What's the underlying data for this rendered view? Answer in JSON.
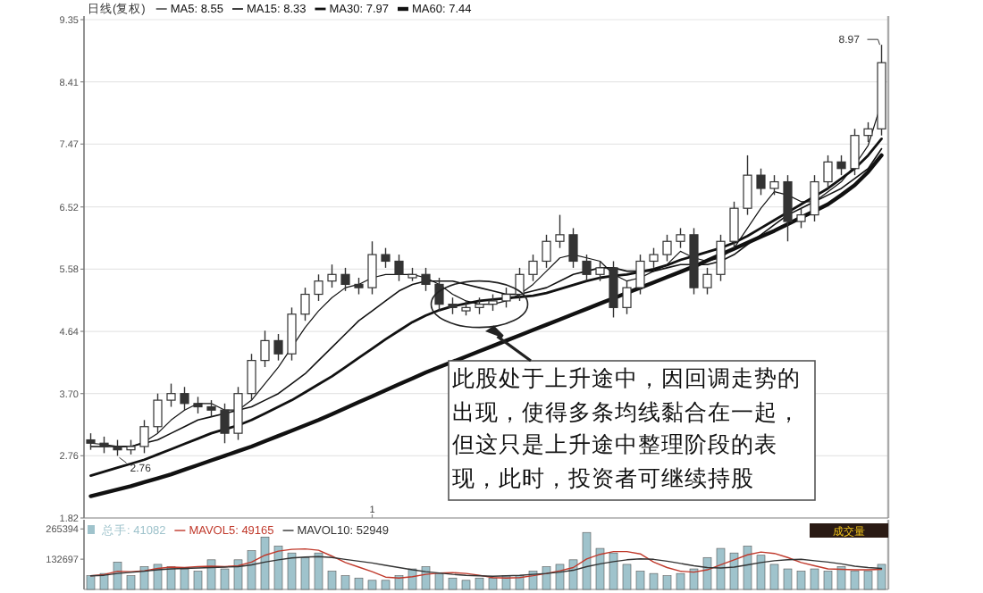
{
  "chart_data": [
    {
      "type": "candlestick",
      "title": "日线(复权)",
      "categories": [
        null,
        null,
        null,
        null,
        null,
        null,
        null,
        null,
        null,
        null,
        null,
        null,
        null,
        null,
        null,
        null,
        null,
        null,
        null,
        null,
        null,
        "1",
        null,
        null,
        null,
        null,
        null,
        null,
        null,
        null,
        null,
        null,
        null,
        null,
        null,
        null,
        null,
        null,
        null,
        null,
        null,
        null,
        null,
        null,
        null,
        null,
        null,
        null,
        null,
        null,
        null,
        null,
        null,
        null,
        null,
        null,
        null,
        null,
        null,
        null
      ],
      "ohlc": [
        [
          3.0,
          3.1,
          2.85,
          2.95
        ],
        [
          2.95,
          3.05,
          2.8,
          2.9
        ],
        [
          2.9,
          3.0,
          2.76,
          2.85
        ],
        [
          2.85,
          3.0,
          2.78,
          2.9
        ],
        [
          2.9,
          3.3,
          2.8,
          3.2
        ],
        [
          3.2,
          3.7,
          3.1,
          3.6
        ],
        [
          3.6,
          3.85,
          3.5,
          3.7
        ],
        [
          3.7,
          3.8,
          3.45,
          3.55
        ],
        [
          3.55,
          3.65,
          3.4,
          3.5
        ],
        [
          3.5,
          3.6,
          3.35,
          3.45
        ],
        [
          3.45,
          3.55,
          2.95,
          3.1
        ],
        [
          3.1,
          3.8,
          3.0,
          3.7
        ],
        [
          3.7,
          4.3,
          3.6,
          4.2
        ],
        [
          4.2,
          4.65,
          4.1,
          4.5
        ],
        [
          4.5,
          4.6,
          4.2,
          4.3
        ],
        [
          4.3,
          5.0,
          4.2,
          4.9
        ],
        [
          4.9,
          5.3,
          4.8,
          5.2
        ],
        [
          5.2,
          5.5,
          5.1,
          5.4
        ],
        [
          5.4,
          5.65,
          5.3,
          5.5
        ],
        [
          5.5,
          5.6,
          5.25,
          5.35
        ],
        [
          5.35,
          5.45,
          5.2,
          5.3
        ],
        [
          5.3,
          6.0,
          5.2,
          5.8
        ],
        [
          5.8,
          5.9,
          5.6,
          5.7
        ],
        [
          5.7,
          5.8,
          5.4,
          5.5
        ],
        [
          5.45,
          5.6,
          5.4,
          5.5
        ],
        [
          5.5,
          5.6,
          5.25,
          5.35
        ],
        [
          5.35,
          5.45,
          4.95,
          5.05
        ],
        [
          5.05,
          5.15,
          4.9,
          5.0
        ],
        [
          4.95,
          5.1,
          4.88,
          5.0
        ],
        [
          5.0,
          5.15,
          4.9,
          5.05
        ],
        [
          5.05,
          5.2,
          4.95,
          5.1
        ],
        [
          5.1,
          5.3,
          5.0,
          5.2
        ],
        [
          5.2,
          5.6,
          5.1,
          5.5
        ],
        [
          5.5,
          5.8,
          5.4,
          5.7
        ],
        [
          5.7,
          6.1,
          5.6,
          6.0
        ],
        [
          6.0,
          6.4,
          5.9,
          6.1
        ],
        [
          6.1,
          6.2,
          5.6,
          5.7
        ],
        [
          5.7,
          5.8,
          5.4,
          5.5
        ],
        [
          5.5,
          5.7,
          5.4,
          5.6
        ],
        [
          5.6,
          5.7,
          4.85,
          5.0
        ],
        [
          5.0,
          5.4,
          4.9,
          5.3
        ],
        [
          5.3,
          5.8,
          5.2,
          5.7
        ],
        [
          5.7,
          5.9,
          5.6,
          5.8
        ],
        [
          5.8,
          6.1,
          5.7,
          6.0
        ],
        [
          6.0,
          6.2,
          5.9,
          6.1
        ],
        [
          6.1,
          6.2,
          5.2,
          5.3
        ],
        [
          5.3,
          5.6,
          5.2,
          5.5
        ],
        [
          5.5,
          6.1,
          5.4,
          6.0
        ],
        [
          6.0,
          6.6,
          5.9,
          6.5
        ],
        [
          6.5,
          7.3,
          6.4,
          7.0
        ],
        [
          7.0,
          7.1,
          6.7,
          6.8
        ],
        [
          6.8,
          7.0,
          6.7,
          6.9
        ],
        [
          6.9,
          7.0,
          6.0,
          6.3
        ],
        [
          6.3,
          6.5,
          6.2,
          6.4
        ],
        [
          6.4,
          7.0,
          6.3,
          6.9
        ],
        [
          6.9,
          7.3,
          6.8,
          7.2
        ],
        [
          7.2,
          7.3,
          7.0,
          7.1
        ],
        [
          7.1,
          7.7,
          7.0,
          7.6
        ],
        [
          7.6,
          7.8,
          7.5,
          7.7
        ],
        [
          7.7,
          8.97,
          7.6,
          8.7
        ]
      ],
      "series": [
        {
          "name": "MA5: 8.55",
          "type": "line",
          "color": "#111111",
          "values": [
            2.95,
            2.93,
            2.9,
            2.9,
            2.97,
            3.1,
            3.3,
            3.45,
            3.55,
            3.55,
            3.45,
            3.45,
            3.6,
            3.85,
            4.1,
            4.4,
            4.7,
            4.95,
            5.15,
            5.3,
            5.35,
            5.45,
            5.5,
            5.5,
            5.5,
            5.45,
            5.35,
            5.2,
            5.1,
            5.05,
            5.05,
            5.1,
            5.2,
            5.35,
            5.55,
            5.75,
            5.8,
            5.75,
            5.7,
            5.5,
            5.4,
            5.45,
            5.55,
            5.65,
            5.85,
            5.75,
            5.7,
            5.75,
            5.9,
            6.2,
            6.5,
            6.75,
            6.7,
            6.6,
            6.6,
            6.75,
            6.9,
            7.15,
            7.45,
            8.1
          ]
        },
        {
          "name": "MA15: 8.33",
          "type": "line",
          "color": "#111111",
          "values": [
            2.9,
            2.9,
            2.9,
            2.9,
            2.95,
            3.0,
            3.1,
            3.2,
            3.3,
            3.35,
            3.4,
            3.45,
            3.5,
            3.6,
            3.7,
            3.85,
            4.0,
            4.2,
            4.4,
            4.6,
            4.8,
            4.95,
            5.1,
            5.25,
            5.35,
            5.4,
            5.4,
            5.4,
            5.35,
            5.3,
            5.25,
            5.2,
            5.2,
            5.25,
            5.3,
            5.4,
            5.5,
            5.55,
            5.6,
            5.6,
            5.55,
            5.55,
            5.55,
            5.6,
            5.65,
            5.65,
            5.65,
            5.7,
            5.8,
            5.95,
            6.1,
            6.25,
            6.4,
            6.5,
            6.6,
            6.7,
            6.8,
            6.95,
            7.1,
            7.4
          ]
        },
        {
          "name": "MA30: 7.97",
          "type": "line",
          "color": "#111111",
          "values": [
            2.46,
            2.52,
            2.58,
            2.64,
            2.7,
            2.78,
            2.86,
            2.94,
            3.02,
            3.1,
            3.16,
            3.22,
            3.3,
            3.4,
            3.5,
            3.6,
            3.72,
            3.84,
            3.96,
            4.1,
            4.24,
            4.38,
            4.52,
            4.65,
            4.78,
            4.88,
            4.96,
            5.02,
            5.06,
            5.1,
            5.12,
            5.14,
            5.16,
            5.18,
            5.22,
            5.28,
            5.34,
            5.4,
            5.45,
            5.48,
            5.5,
            5.54,
            5.58,
            5.64,
            5.72,
            5.78,
            5.84,
            5.9,
            5.98,
            6.08,
            6.2,
            6.32,
            6.44,
            6.56,
            6.68,
            6.8,
            6.95,
            7.1,
            7.3,
            7.55
          ]
        },
        {
          "name": "MA60: 7.44",
          "type": "line",
          "color": "#111111",
          "values": [
            2.15,
            2.2,
            2.25,
            2.3,
            2.36,
            2.42,
            2.48,
            2.55,
            2.62,
            2.69,
            2.76,
            2.83,
            2.9,
            2.98,
            3.06,
            3.14,
            3.22,
            3.3,
            3.39,
            3.48,
            3.57,
            3.66,
            3.75,
            3.84,
            3.93,
            4.02,
            4.1,
            4.18,
            4.26,
            4.34,
            4.42,
            4.5,
            4.58,
            4.66,
            4.74,
            4.82,
            4.9,
            4.98,
            5.06,
            5.14,
            5.22,
            5.3,
            5.38,
            5.46,
            5.54,
            5.62,
            5.71,
            5.8,
            5.89,
            5.98,
            6.07,
            6.16,
            6.26,
            6.36,
            6.46,
            6.56,
            6.7,
            6.85,
            7.05,
            7.3
          ]
        }
      ],
      "ylim": [
        1.82,
        9.35
      ],
      "yticks": [
        1.82,
        2.76,
        {
          "value": 3.7,
          "label": "3.70"
        },
        4.64,
        5.58,
        6.52,
        7.47,
        8.41,
        9.35
      ],
      "grid": "y",
      "legend": "top left",
      "annotations": [
        "8.97",
        {
          "text": "2.76",
          "y": 2.76
        },
        "此股处于上升途中，因回调走势的出现，使得多条均线黏合在一起，但这只是上升途中整理阶段的表现，此时，投资者可继续持股"
      ]
    },
    {
      "type": "bar",
      "categories": [
        null,
        null,
        null,
        null,
        null,
        null,
        null,
        null,
        null,
        null,
        null,
        null,
        null,
        null,
        null,
        null,
        null,
        null,
        null,
        null,
        null,
        null,
        null,
        null,
        null,
        null,
        null,
        null,
        null,
        null,
        null,
        null,
        null,
        null,
        null,
        null,
        null,
        null,
        null,
        null,
        null,
        null,
        null,
        null,
        null,
        null,
        null,
        null,
        null,
        null,
        null,
        null,
        null,
        null,
        null,
        null,
        null,
        null,
        null,
        null
      ],
      "series": [
        {
          "name": "总手: 41082",
          "type": "bar",
          "color": "#9fc3cc",
          "values": [
            60000,
            70000,
            120000,
            60000,
            100000,
            110000,
            100000,
            90000,
            80000,
            130000,
            90000,
            130000,
            170000,
            230000,
            190000,
            160000,
            140000,
            160000,
            80000,
            60000,
            50000,
            40000,
            40000,
            60000,
            90000,
            100000,
            70000,
            50000,
            40000,
            50000,
            50000,
            60000,
            60000,
            80000,
            100000,
            110000,
            130000,
            250000,
            180000,
            160000,
            110000,
            80000,
            70000,
            60000,
            70000,
            90000,
            140000,
            180000,
            160000,
            190000,
            150000,
            110000,
            90000,
            80000,
            90000,
            80000,
            100000,
            80000,
            80000,
            110000
          ]
        },
        {
          "name": "MAVOL5: 49165",
          "type": "line",
          "color": "#c0392b",
          "values": [
            60000,
            65000,
            80000,
            78000,
            82000,
            92000,
            98000,
            96000,
            100000,
            102000,
            100000,
            104000,
            120000,
            150000,
            168000,
            176000,
            178000,
            172000,
            146000,
            118000,
            98000,
            78000,
            54000,
            50000,
            56000,
            66000,
            72000,
            74000,
            70000,
            62000,
            52000,
            50000,
            52000,
            60000,
            70000,
            82000,
            96000,
            134000,
            154000,
            166000,
            166000,
            156000,
            120000,
            96000,
            80000,
            76000,
            86000,
            108000,
            130000,
            152000,
            164000,
            158000,
            140000,
            118000,
            104000,
            90000,
            88000,
            86000,
            86000,
            88000
          ]
        },
        {
          "name": "MAVOL10: 52949",
          "type": "line",
          "color": "#333333",
          "values": [
            60000,
            62000,
            70000,
            75000,
            80000,
            86000,
            90000,
            92000,
            94000,
            96000,
            98000,
            100000,
            108000,
            120000,
            130000,
            138000,
            142000,
            144000,
            140000,
            132000,
            124000,
            116000,
            106000,
            96000,
            86000,
            78000,
            72000,
            66000,
            62000,
            60000,
            58000,
            60000,
            62000,
            66000,
            70000,
            76000,
            84000,
            100000,
            112000,
            122000,
            130000,
            134000,
            132000,
            124000,
            114000,
            104000,
            96000,
            94000,
            98000,
            108000,
            118000,
            126000,
            130000,
            132000,
            126000,
            120000,
            112000,
            102000,
            96000,
            92000
          ]
        }
      ],
      "ylim": [
        0,
        290000
      ],
      "yticks": [
        132697,
        265394
      ],
      "tick_labels": "y",
      "legend": "top left",
      "annotations": [
        "成交量"
      ]
    }
  ]
}
